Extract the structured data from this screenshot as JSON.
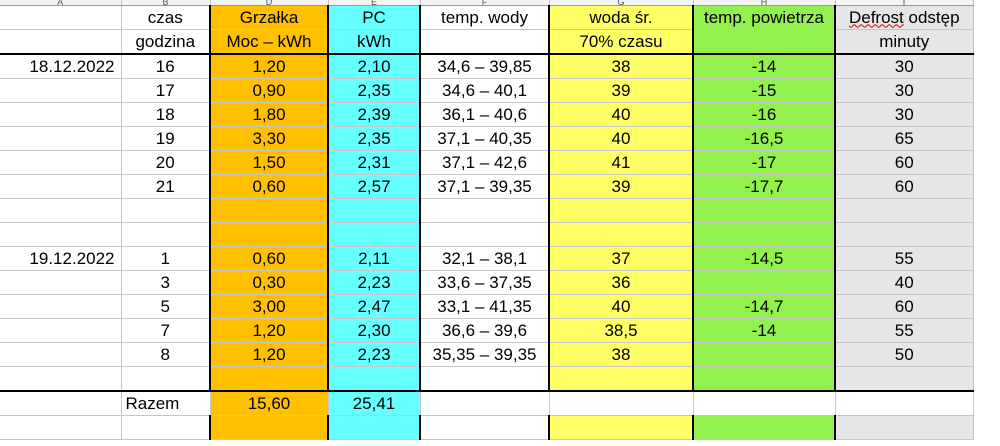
{
  "columns": [
    "A",
    "B",
    "D",
    "E",
    "F",
    "G",
    "H",
    "I"
  ],
  "header1": {
    "time": "czas",
    "heater": "Grzałka",
    "pc": "PC",
    "water_temp": "temp. wody",
    "water_avg": "woda śr.",
    "air_temp": "temp. powietrza",
    "defrost_word": "Defrost",
    "defrost_rest": " odstęp"
  },
  "header2": {
    "hour": "godzina",
    "heater_unit": "Moc – kWh",
    "pc_unit": "kWh",
    "water_avg_note": "70% czasu",
    "defrost_unit": "minuty"
  },
  "day1": {
    "date": "18.12.2022",
    "rows": [
      {
        "hour": "16",
        "heater": "1,20",
        "pc": "2,10",
        "water": "34,6 – 39,85",
        "avg": "38",
        "air": "-14",
        "defrost": "30"
      },
      {
        "hour": "17",
        "heater": "0,90",
        "pc": "2,35",
        "water": "34,6 – 40,1",
        "avg": "39",
        "air": "-15",
        "defrost": "30"
      },
      {
        "hour": "18",
        "heater": "1,80",
        "pc": "2,39",
        "water": "36,1 – 40,6",
        "avg": "40",
        "air": "-16",
        "defrost": "30"
      },
      {
        "hour": "19",
        "heater": "3,30",
        "pc": "2,35",
        "water": "37,1 – 40,35",
        "avg": "40",
        "air": "-16,5",
        "defrost": "65"
      },
      {
        "hour": "20",
        "heater": "1,50",
        "pc": "2,31",
        "water": "37,1 – 42,6",
        "avg": "41",
        "air": "-17",
        "defrost": "60"
      },
      {
        "hour": "21",
        "heater": "0,60",
        "pc": "2,57",
        "water": "37,1 – 39,35",
        "avg": "39",
        "air": "-17,7",
        "defrost": "60"
      }
    ]
  },
  "day2": {
    "date": "19.12.2022",
    "rows": [
      {
        "hour": "1",
        "heater": "0,60",
        "pc": "2,11",
        "water": "32,1 – 38,1",
        "avg": "37",
        "air": "-14,5",
        "defrost": "55"
      },
      {
        "hour": "3",
        "heater": "0,30",
        "pc": "2,23",
        "water": "33,6 – 37,35",
        "avg": "36",
        "air": "",
        "defrost": "40"
      },
      {
        "hour": "5",
        "heater": "3,00",
        "pc": "2,47",
        "water": "33,1 – 41,35",
        "avg": "40",
        "air": "-14,7",
        "defrost": "60"
      },
      {
        "hour": "7",
        "heater": "1,20",
        "pc": "2,30",
        "water": "36,6 – 39,6",
        "avg": "38,5",
        "air": "-14",
        "defrost": "55"
      },
      {
        "hour": "8",
        "heater": "1,20",
        "pc": "2,23",
        "water": "35,35 – 39,35",
        "avg": "38",
        "air": "",
        "defrost": "50"
      }
    ]
  },
  "total": {
    "label": "Razem",
    "heater": "15,60",
    "pc": "25,41"
  }
}
